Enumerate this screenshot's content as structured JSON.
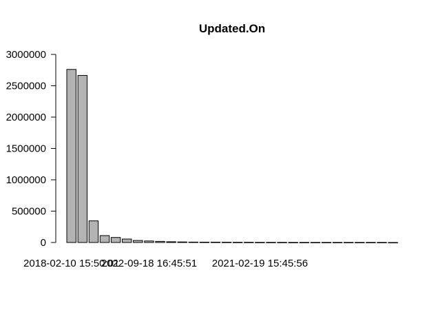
{
  "chart_data": {
    "type": "bar",
    "title": "Updated.On",
    "xlabel": "",
    "ylabel": "",
    "ylim": [
      0,
      3000000
    ],
    "yticks": [
      0,
      500000,
      1000000,
      1500000,
      2000000,
      2500000,
      3000000
    ],
    "ytick_labels": [
      "0",
      "500000",
      "1000000",
      "1500000",
      "2000000",
      "2500000",
      "3000000"
    ],
    "categories": [
      "2018-02-10 15:50:01",
      "",
      "",
      "",
      "",
      "",
      "",
      "2022-09-18 16:45:51",
      "",
      "",
      "",
      "",
      "",
      "",
      "",
      "",
      "",
      "2021-02-19 15:45:56",
      "",
      "",
      "",
      "",
      "",
      "",
      "",
      "",
      "",
      "",
      "",
      ""
    ],
    "visible_category_labels": [
      "2018-02-10 15:50:01",
      "2022-09-18 16:45:51",
      "2021-02-19 15:45:56"
    ],
    "values": [
      2760000,
      2665000,
      345000,
      110000,
      80000,
      55000,
      32000,
      24000,
      18000,
      12000,
      9000,
      7000,
      6000,
      5000,
      4000,
      3500,
      3000,
      2500,
      2000,
      1800,
      1500,
      1300,
      1200,
      1100,
      1000,
      900,
      800,
      700,
      600,
      500
    ],
    "bar_color": "#b3b3b3",
    "grid": false,
    "legend": "none"
  }
}
